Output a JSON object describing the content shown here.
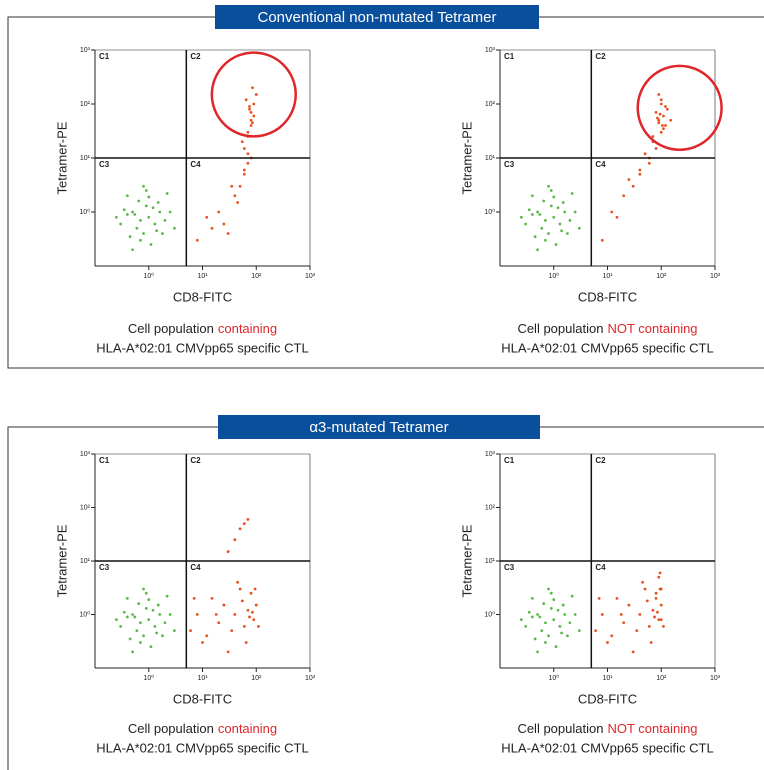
{
  "sections": [
    {
      "title": "Conventional non-mutated Tetramer"
    },
    {
      "title": "α3-mutated Tetramer"
    }
  ],
  "chart_data": [
    {
      "type": "scatter",
      "xlabel": "CD8-FITC",
      "ylabel": "Tetramer-PE",
      "log": true,
      "xlim": [
        0.1,
        1000
      ],
      "ylim": [
        0.1,
        1000
      ],
      "xticks": [
        {
          "value": 1,
          "label": "10⁰"
        },
        {
          "value": 10,
          "label": "10¹"
        },
        {
          "value": 100,
          "label": "10²"
        },
        {
          "value": 1000,
          "label": "10³"
        }
      ],
      "yticks": [
        {
          "value": 1,
          "label": "10⁰"
        },
        {
          "value": 10,
          "label": "10¹"
        },
        {
          "value": 100,
          "label": "10²"
        },
        {
          "value": 1000,
          "label": "10³"
        }
      ],
      "quadrant": {
        "x": 5,
        "y": 10,
        "labels": [
          "C1",
          "C2",
          "C3",
          "C4"
        ]
      },
      "highlight": {
        "x": 90,
        "y": 150,
        "r": 0.78,
        "color": "#e0262b"
      },
      "caption": "Cell population",
      "caption_highlight": "containing",
      "caption_line2": "HLA-A*02:01 CMVpp65 specific CTL",
      "series": [
        {
          "color": "#5cb84a",
          "x": [
            0.3,
            0.5,
            0.8,
            1.0,
            1.5,
            0.4,
            0.7,
            1.2,
            2.0,
            0.6,
            0.9,
            1.1,
            0.35,
            0.55,
            2.5,
            1.8,
            0.45,
            0.65,
            1.3,
            0.25,
            0.8,
            1.0,
            3.0,
            0.5,
            1.6,
            0.7,
            0.9,
            2.2,
            0.4,
            1.4
          ],
          "values": [
            0.6,
            1.0,
            0.4,
            0.8,
            1.5,
            2.0,
            0.3,
            1.2,
            0.7,
            0.5,
            2.5,
            0.25,
            1.1,
            0.9,
            1.0,
            0.4,
            0.35,
            1.6,
            0.6,
            0.8,
            3.0,
            1.9,
            0.5,
            0.2,
            1.0,
            0.7,
            1.3,
            2.2,
            0.9,
            0.45
          ]
        },
        {
          "color": "#e8501e",
          "x": [
            8,
            15,
            20,
            30,
            40,
            50,
            60,
            70,
            80,
            60,
            70,
            80,
            90,
            75,
            65,
            85,
            55,
            45,
            12,
            25,
            35,
            70,
            80,
            90,
            100,
            60,
            70,
            80,
            75,
            85
          ],
          "values": [
            0.3,
            0.5,
            1,
            0.4,
            2,
            3,
            5,
            8,
            10,
            15,
            25,
            40,
            60,
            80,
            120,
            200,
            20,
            1.5,
            0.8,
            0.6,
            3,
            30,
            50,
            100,
            150,
            6,
            12,
            70,
            90,
            45
          ]
        }
      ]
    },
    {
      "type": "scatter",
      "xlabel": "CD8-FITC",
      "ylabel": "Tetramer-PE",
      "log": true,
      "xlim": [
        0.1,
        1000
      ],
      "ylim": [
        0.1,
        1000
      ],
      "xticks": [
        {
          "value": 1,
          "label": "10⁰"
        },
        {
          "value": 10,
          "label": "10¹"
        },
        {
          "value": 100,
          "label": "10²"
        },
        {
          "value": 1000,
          "label": "10³"
        }
      ],
      "yticks": [
        {
          "value": 1,
          "label": "10⁰"
        },
        {
          "value": 10,
          "label": "10¹"
        },
        {
          "value": 100,
          "label": "10²"
        },
        {
          "value": 1000,
          "label": "10³"
        }
      ],
      "quadrant": {
        "x": 5,
        "y": 10,
        "labels": [
          "C1",
          "C2",
          "C3",
          "C4"
        ]
      },
      "highlight": {
        "x": 220,
        "y": 85,
        "r": 0.78,
        "color": "#e0262b"
      },
      "caption": "Cell population",
      "caption_highlight": "NOT containing",
      "caption_line2": "HLA-A*02:01 CMVpp65 specific CTL",
      "series": [
        {
          "color": "#5cb84a",
          "x": [
            0.3,
            0.5,
            0.8,
            1.0,
            1.5,
            0.4,
            0.7,
            1.2,
            2.0,
            0.6,
            0.9,
            1.1,
            0.35,
            0.55,
            2.5,
            1.8,
            0.45,
            0.65,
            1.3,
            0.25,
            0.8,
            1.0,
            3.0,
            0.5,
            1.6,
            0.7,
            0.9,
            2.2,
            0.4,
            1.4
          ],
          "values": [
            0.6,
            1.0,
            0.4,
            0.8,
            1.5,
            2.0,
            0.3,
            1.2,
            0.7,
            0.5,
            2.5,
            0.25,
            1.1,
            0.9,
            1.0,
            0.4,
            0.35,
            1.6,
            0.6,
            0.8,
            3.0,
            1.9,
            0.5,
            0.2,
            1.0,
            0.7,
            1.3,
            2.2,
            0.9,
            0.45
          ]
        },
        {
          "color": "#e8501e",
          "x": [
            8,
            12,
            20,
            30,
            40,
            60,
            80,
            100,
            120,
            90,
            110,
            80,
            70,
            100,
            130,
            90,
            60,
            50,
            15,
            25,
            40,
            100,
            110,
            85,
            95,
            150,
            70,
            120,
            105,
            90
          ],
          "values": [
            0.3,
            1,
            2,
            3,
            5,
            8,
            15,
            30,
            40,
            50,
            60,
            70,
            25,
            100,
            80,
            45,
            10,
            12,
            0.8,
            4,
            6,
            120,
            35,
            55,
            65,
            50,
            20,
            90,
            40,
            150
          ]
        }
      ]
    },
    {
      "type": "scatter",
      "xlabel": "CD8-FITC",
      "ylabel": "Tetramer-PE",
      "log": true,
      "xlim": [
        0.1,
        1000
      ],
      "ylim": [
        0.1,
        1000
      ],
      "xticks": [
        {
          "value": 1,
          "label": "10⁰"
        },
        {
          "value": 10,
          "label": "10¹"
        },
        {
          "value": 100,
          "label": "10²"
        },
        {
          "value": 1000,
          "label": "10³"
        }
      ],
      "yticks": [
        {
          "value": 1,
          "label": "10⁰"
        },
        {
          "value": 10,
          "label": "10¹"
        },
        {
          "value": 100,
          "label": "10²"
        },
        {
          "value": 1000,
          "label": "10³"
        }
      ],
      "quadrant": {
        "x": 5,
        "y": 10,
        "labels": [
          "C1",
          "C2",
          "C3",
          "C4"
        ]
      },
      "caption": "Cell population",
      "caption_highlight": "containing",
      "caption_line2": "HLA-A*02:01 CMVpp65 specific CTL",
      "series": [
        {
          "color": "#5cb84a",
          "x": [
            0.3,
            0.5,
            0.8,
            1.0,
            1.5,
            0.4,
            0.7,
            1.2,
            2.0,
            0.6,
            0.9,
            1.1,
            0.35,
            0.55,
            2.5,
            1.8,
            0.45,
            0.65,
            1.3,
            0.25,
            0.8,
            1.0,
            3.0,
            0.5,
            1.6,
            0.7,
            0.9,
            2.2,
            0.4,
            1.4
          ],
          "values": [
            0.6,
            1.0,
            0.4,
            0.8,
            1.5,
            2.0,
            0.3,
            1.2,
            0.7,
            0.5,
            2.5,
            0.25,
            1.1,
            0.9,
            1.0,
            0.4,
            0.35,
            1.6,
            0.6,
            0.8,
            3.0,
            1.9,
            0.5,
            0.2,
            1.0,
            0.7,
            1.3,
            2.2,
            0.9,
            0.45
          ]
        },
        {
          "color": "#e8501e",
          "x": [
            6,
            8,
            10,
            15,
            20,
            25,
            30,
            40,
            50,
            60,
            70,
            80,
            90,
            100,
            7,
            12,
            18,
            35,
            45,
            55,
            65,
            75,
            85,
            95,
            110,
            30,
            40,
            50,
            60,
            70
          ],
          "values": [
            0.5,
            1,
            0.3,
            2,
            0.7,
            1.5,
            0.2,
            1,
            3,
            0.6,
            1.2,
            2.5,
            0.8,
            1.5,
            2,
            0.4,
            1,
            0.5,
            4,
            1.8,
            0.3,
            0.9,
            1.1,
            3,
            0.6,
            15,
            25,
            40,
            50,
            60
          ]
        }
      ]
    },
    {
      "type": "scatter",
      "xlabel": "CD8-FITC",
      "ylabel": "Tetramer-PE",
      "log": true,
      "xlim": [
        0.1,
        1000
      ],
      "ylim": [
        0.1,
        1000
      ],
      "xticks": [
        {
          "value": 1,
          "label": "10⁰"
        },
        {
          "value": 10,
          "label": "10¹"
        },
        {
          "value": 100,
          "label": "10²"
        },
        {
          "value": 1000,
          "label": "10³"
        }
      ],
      "yticks": [
        {
          "value": 1,
          "label": "10⁰"
        },
        {
          "value": 10,
          "label": "10¹"
        },
        {
          "value": 100,
          "label": "10²"
        },
        {
          "value": 1000,
          "label": "10³"
        }
      ],
      "quadrant": {
        "x": 5,
        "y": 10,
        "labels": [
          "C1",
          "C2",
          "C3",
          "C4"
        ]
      },
      "caption": "Cell population",
      "caption_highlight": "NOT containing",
      "caption_line2": "HLA-A*02:01 CMVpp65 specific CTL",
      "series": [
        {
          "color": "#5cb84a",
          "x": [
            0.3,
            0.5,
            0.8,
            1.0,
            1.5,
            0.4,
            0.7,
            1.2,
            2.0,
            0.6,
            0.9,
            1.1,
            0.35,
            0.55,
            2.5,
            1.8,
            0.45,
            0.65,
            1.3,
            0.25,
            0.8,
            1.0,
            3.0,
            0.5,
            1.6,
            0.7,
            0.9,
            2.2,
            0.4,
            1.4
          ],
          "values": [
            0.6,
            1.0,
            0.4,
            0.8,
            1.5,
            2.0,
            0.3,
            1.2,
            0.7,
            0.5,
            2.5,
            0.25,
            1.1,
            0.9,
            1.0,
            0.4,
            0.35,
            1.6,
            0.6,
            0.8,
            3.0,
            1.9,
            0.5,
            0.2,
            1.0,
            0.7,
            1.3,
            2.2,
            0.9,
            0.45
          ]
        },
        {
          "color": "#e8501e",
          "x": [
            6,
            8,
            10,
            15,
            20,
            25,
            30,
            40,
            50,
            60,
            70,
            80,
            90,
            100,
            7,
            12,
            18,
            35,
            45,
            55,
            65,
            75,
            85,
            95,
            110,
            90,
            100,
            80,
            100,
            95
          ],
          "values": [
            0.5,
            1,
            0.3,
            2,
            0.7,
            1.5,
            0.2,
            1,
            3,
            0.6,
            1.2,
            2.5,
            0.8,
            1.5,
            2,
            0.4,
            1,
            0.5,
            4,
            1.8,
            0.3,
            0.9,
            1.1,
            3,
            0.6,
            5,
            3,
            2,
            0.8,
            6
          ]
        }
      ]
    }
  ]
}
